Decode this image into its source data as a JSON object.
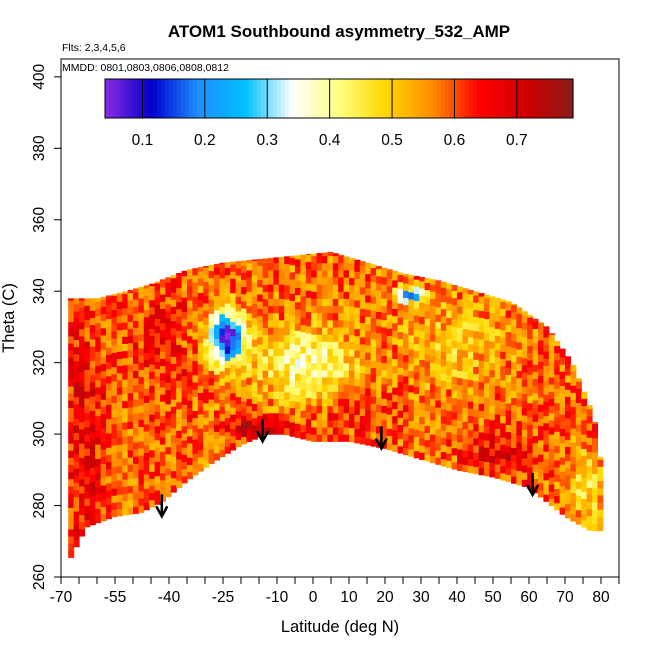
{
  "chart_data": {
    "type": "heatmap",
    "title": "ATOM1 Southbound asymmetry_532_AMP",
    "annotations": [
      "Flts: 2,3,4,5,6",
      "MMDD: 0801,0803,0806,0808,0812"
    ],
    "xlabel": "Latitude (deg N)",
    "ylabel": "Theta (C)",
    "xlim": [
      -70,
      85
    ],
    "ylim": [
      260,
      405
    ],
    "x_ticks": [
      -70,
      -65,
      -60,
      -55,
      -50,
      -45,
      -40,
      -35,
      -30,
      -25,
      -20,
      -15,
      -10,
      -5,
      0,
      5,
      10,
      15,
      20,
      25,
      30,
      35,
      40,
      45,
      50,
      55,
      60,
      65,
      70,
      75,
      80,
      85
    ],
    "x_tick_labels": [
      "-70",
      "-55",
      "-40",
      "-25",
      "-10",
      "0",
      "10",
      "20",
      "30",
      "40",
      "50",
      "60",
      "70",
      "80"
    ],
    "x_tick_label_values": [
      -70,
      -55,
      -40,
      -25,
      -10,
      0,
      10,
      20,
      30,
      40,
      50,
      60,
      70,
      80
    ],
    "y_ticks": [
      260,
      280,
      300,
      320,
      340,
      360,
      380,
      400
    ],
    "y_tick_labels": [
      "260",
      "280",
      "300",
      "320",
      "340",
      "360",
      "380",
      "400"
    ],
    "colorbar": {
      "range": [
        0.04,
        0.79
      ],
      "ticks": [
        0.1,
        0.2,
        0.3,
        0.4,
        0.5,
        0.6,
        0.7
      ],
      "tick_labels": [
        "0.1",
        "0.2",
        "0.3",
        "0.4",
        "0.5",
        "0.6",
        "0.7"
      ],
      "colors": [
        "#8a2be2",
        "#0000cd",
        "#1e90ff",
        "#00bfff",
        "#ffffff",
        "#ffff80",
        "#ffd700",
        "#ff8c00",
        "#ff0000",
        "#cd0000",
        "#8b1a1a"
      ]
    },
    "data_top": [
      [
        -68,
        338
      ],
      [
        -60,
        338
      ],
      [
        -52,
        340
      ],
      [
        -45,
        342
      ],
      [
        -35,
        346
      ],
      [
        -25,
        348
      ],
      [
        -15,
        349
      ],
      [
        -5,
        350
      ],
      [
        5,
        351
      ],
      [
        15,
        348
      ],
      [
        25,
        345
      ],
      [
        35,
        343
      ],
      [
        45,
        340
      ],
      [
        55,
        337
      ],
      [
        65,
        330
      ],
      [
        72,
        320
      ],
      [
        78,
        305
      ],
      [
        80,
        292
      ]
    ],
    "data_bottom": [
      [
        -68,
        264
      ],
      [
        -63,
        274
      ],
      [
        -55,
        277
      ],
      [
        -48,
        278
      ],
      [
        -42,
        281
      ],
      [
        -35,
        287
      ],
      [
        -28,
        292
      ],
      [
        -20,
        297
      ],
      [
        -13,
        300
      ],
      [
        -8,
        300
      ],
      [
        0,
        298
      ],
      [
        10,
        298
      ],
      [
        20,
        296
      ],
      [
        30,
        293
      ],
      [
        40,
        290
      ],
      [
        50,
        288
      ],
      [
        60,
        285
      ],
      [
        70,
        277
      ],
      [
        77,
        273
      ]
    ],
    "field": {
      "base_value": 0.58,
      "blobs": [
        {
          "lat": -24,
          "theta": 327,
          "sigma_lat": 5,
          "sigma_theta": 7,
          "value": 0.05
        },
        {
          "lat": -2,
          "theta": 320,
          "sigma_lat": 13,
          "sigma_theta": 9,
          "value": 0.38
        },
        {
          "lat": 27,
          "theta": 339,
          "sigma_lat": 4,
          "sigma_theta": 2,
          "value": 0.12
        },
        {
          "lat": -15,
          "theta": 302,
          "sigma_lat": 9,
          "sigma_theta": 3,
          "value": 0.74
        },
        {
          "lat": -64,
          "theta": 300,
          "sigma_lat": 7,
          "sigma_theta": 35,
          "value": 0.67
        },
        {
          "lat": 52,
          "theta": 295,
          "sigma_lat": 10,
          "sigma_theta": 6,
          "value": 0.68
        },
        {
          "lat": 76,
          "theta": 286,
          "sigma_lat": 5,
          "sigma_theta": 9,
          "value": 0.46
        },
        {
          "lat": 40,
          "theta": 325,
          "sigma_lat": 14,
          "sigma_theta": 12,
          "value": 0.5
        },
        {
          "lat": -42,
          "theta": 325,
          "sigma_lat": 8,
          "sigma_theta": 18,
          "value": 0.64
        },
        {
          "lat": 15,
          "theta": 306,
          "sigma_lat": 10,
          "sigma_theta": 5,
          "value": 0.63
        }
      ]
    },
    "tropopause_arrows": [
      [
        -42,
        277
      ],
      [
        -14,
        298
      ],
      [
        19,
        296
      ],
      [
        61,
        283
      ]
    ]
  }
}
